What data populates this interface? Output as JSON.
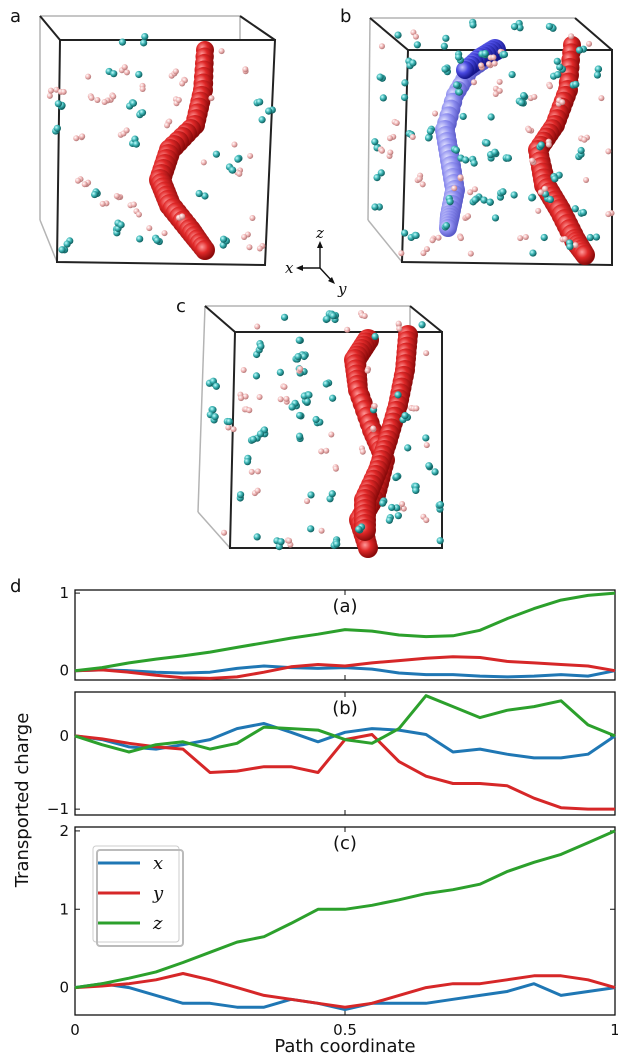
{
  "panels": {
    "a": "a",
    "b": "b",
    "c": "c",
    "d": "d"
  },
  "axes_indicator": {
    "x": "x",
    "y": "y",
    "z": "z"
  },
  "chart_data": {
    "type": "line",
    "xlabel": "Path coordinate",
    "ylabel": "Transported charge",
    "x_ticks": [
      "0",
      "0.5",
      "1"
    ],
    "colors": {
      "x": "#1f77b4",
      "y": "#d62728",
      "z": "#2ca02c"
    },
    "legend": {
      "placement": "upper-left (bottom panel)",
      "entries": [
        "x",
        "y",
        "z"
      ]
    },
    "subplots": [
      {
        "label": "(a)",
        "ylim": [
          -0.12,
          1.04
        ],
        "y_ticks": [
          "0",
          "1"
        ],
        "y_tick_values": [
          0,
          1
        ],
        "x": [
          0,
          0.05,
          0.1,
          0.15,
          0.2,
          0.25,
          0.3,
          0.35,
          0.4,
          0.45,
          0.5,
          0.55,
          0.6,
          0.65,
          0.7,
          0.75,
          0.8,
          0.85,
          0.9,
          0.95,
          1
        ],
        "series": [
          {
            "name": "x",
            "values": [
              0,
              0.01,
              0.0,
              -0.02,
              -0.03,
              -0.02,
              0.03,
              0.06,
              0.04,
              0.03,
              0.04,
              0.02,
              -0.03,
              -0.05,
              -0.05,
              -0.07,
              -0.08,
              -0.07,
              -0.05,
              -0.07,
              0
            ]
          },
          {
            "name": "y",
            "values": [
              0,
              0.01,
              -0.02,
              -0.06,
              -0.09,
              -0.1,
              -0.08,
              -0.02,
              0.05,
              0.08,
              0.06,
              0.1,
              0.13,
              0.16,
              0.18,
              0.17,
              0.12,
              0.1,
              0.08,
              0.06,
              0
            ]
          },
          {
            "name": "z",
            "values": [
              0,
              0.04,
              0.1,
              0.15,
              0.19,
              0.24,
              0.3,
              0.36,
              0.42,
              0.47,
              0.53,
              0.51,
              0.46,
              0.44,
              0.45,
              0.52,
              0.67,
              0.8,
              0.91,
              0.97,
              1.0
            ]
          }
        ]
      },
      {
        "label": "(b)",
        "ylim": [
          -1.08,
          0.6
        ],
        "y_ticks": [
          "0",
          "−1"
        ],
        "y_tick_values": [
          0,
          -1
        ],
        "x": [
          0,
          0.05,
          0.1,
          0.15,
          0.2,
          0.25,
          0.3,
          0.35,
          0.4,
          0.45,
          0.5,
          0.55,
          0.6,
          0.65,
          0.7,
          0.75,
          0.8,
          0.85,
          0.9,
          0.95,
          1
        ],
        "series": [
          {
            "name": "x",
            "values": [
              0,
              -0.05,
              -0.15,
              -0.18,
              -0.12,
              -0.05,
              0.1,
              0.17,
              0.05,
              -0.08,
              0.05,
              0.1,
              0.08,
              0.02,
              -0.22,
              -0.18,
              -0.25,
              -0.3,
              -0.3,
              -0.25,
              0
            ]
          },
          {
            "name": "y",
            "values": [
              0,
              -0.04,
              -0.1,
              -0.15,
              -0.18,
              -0.5,
              -0.48,
              -0.42,
              -0.42,
              -0.5,
              -0.05,
              0.02,
              -0.35,
              -0.55,
              -0.65,
              -0.65,
              -0.68,
              -0.85,
              -0.98,
              -1.0,
              -1.0
            ]
          },
          {
            "name": "z",
            "values": [
              0,
              -0.12,
              -0.22,
              -0.12,
              -0.08,
              -0.18,
              -0.1,
              0.12,
              0.1,
              0.08,
              -0.05,
              -0.1,
              0.1,
              0.55,
              0.4,
              0.25,
              0.35,
              0.4,
              0.48,
              0.15,
              0
            ]
          }
        ]
      },
      {
        "label": "(c)",
        "ylim": [
          -0.35,
          2.05
        ],
        "y_ticks": [
          "0",
          "1",
          "2"
        ],
        "y_tick_values": [
          0,
          1,
          2
        ],
        "x": [
          0,
          0.05,
          0.1,
          0.15,
          0.2,
          0.25,
          0.3,
          0.35,
          0.4,
          0.45,
          0.5,
          0.55,
          0.6,
          0.65,
          0.7,
          0.75,
          0.8,
          0.85,
          0.9,
          0.95,
          1
        ],
        "series": [
          {
            "name": "x",
            "values": [
              0,
              0.05,
              0.0,
              -0.1,
              -0.2,
              -0.2,
              -0.25,
              -0.25,
              -0.15,
              -0.2,
              -0.28,
              -0.2,
              -0.2,
              -0.2,
              -0.15,
              -0.1,
              -0.05,
              0.05,
              -0.1,
              -0.05,
              0
            ]
          },
          {
            "name": "y",
            "values": [
              0,
              0.02,
              0.05,
              0.1,
              0.18,
              0.1,
              0.0,
              -0.1,
              -0.15,
              -0.2,
              -0.25,
              -0.2,
              -0.1,
              0.0,
              0.05,
              0.05,
              0.1,
              0.15,
              0.15,
              0.1,
              0
            ]
          },
          {
            "name": "z",
            "values": [
              0,
              0.05,
              0.12,
              0.2,
              0.32,
              0.45,
              0.58,
              0.65,
              0.82,
              1.0,
              1.0,
              1.05,
              1.12,
              1.2,
              1.25,
              1.32,
              1.48,
              1.6,
              1.7,
              1.85,
              2.0
            ]
          }
        ]
      }
    ]
  }
}
